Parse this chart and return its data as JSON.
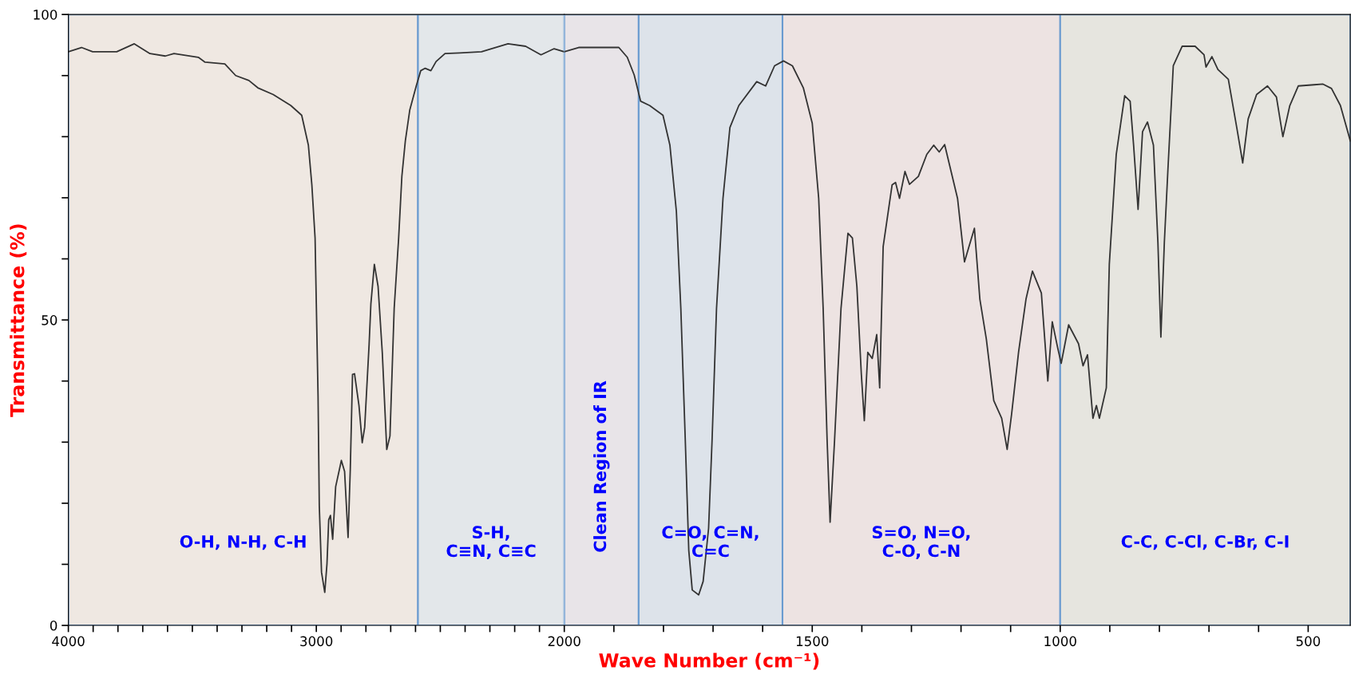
{
  "chart_data": [
    {
      "type": "line",
      "ylabel": "Transmittance (%)",
      "xlim": [
        4000,
        2000
      ],
      "ylim": [
        0,
        100
      ],
      "xticks": [
        4000,
        {
          "value": 3900,
          "label": null
        },
        {
          "value": 3800,
          "label": null
        },
        {
          "value": 3700,
          "label": null
        },
        {
          "value": 3600,
          "label": null
        },
        {
          "value": 3500,
          "label": null
        },
        {
          "value": 3400,
          "label": null
        },
        {
          "value": 3300,
          "label": null
        },
        {
          "value": 3200,
          "label": null
        },
        {
          "value": 3100,
          "label": null
        },
        3000,
        {
          "value": 2900,
          "label": null
        },
        {
          "value": 2800,
          "label": null
        },
        {
          "value": 2700,
          "label": null
        },
        {
          "value": 2600,
          "label": null
        },
        {
          "value": 2500,
          "label": null
        },
        {
          "value": 2400,
          "label": null
        },
        {
          "value": 2300,
          "label": null
        },
        {
          "value": 2200,
          "label": null
        },
        {
          "value": 2100,
          "label": null
        }
      ],
      "yticks": [
        0,
        {
          "value": 10,
          "label": null
        },
        {
          "value": 20,
          "label": null
        },
        {
          "value": 30,
          "label": null
        },
        {
          "value": 40,
          "label": null
        },
        50,
        {
          "value": 60,
          "label": null
        },
        {
          "value": 70,
          "label": null
        },
        {
          "value": 80,
          "label": null
        },
        {
          "value": 90,
          "label": null
        },
        100
      ],
      "grid": false,
      "legend": false,
      "marker": "none",
      "line_style": "solid",
      "series": [
        {
          "color": "#333333",
          "x": [
            4000,
            3947,
            3902,
            3805,
            3734,
            3671,
            3609,
            3574,
            3476,
            3449,
            3369,
            3325,
            3272,
            3236,
            3174,
            3103,
            3059,
            3032,
            3018,
            3005,
            3000,
            2993,
            2988,
            2979,
            2966,
            2957,
            2950,
            2943,
            2934,
            2922,
            2899,
            2886,
            2872,
            2863,
            2854,
            2846,
            2828,
            2815,
            2805,
            2787,
            2780,
            2766,
            2751,
            2734,
            2716,
            2703,
            2686,
            2668,
            2655,
            2641,
            2623,
            2597,
            2579,
            2561,
            2538,
            2517,
            2481,
            2422,
            2334,
            2227,
            2156,
            2094,
            2041,
            2000
          ],
          "values": [
            93.9,
            94.6,
            93.9,
            93.9,
            95.2,
            93.6,
            93.2,
            93.6,
            93.0,
            92.2,
            91.9,
            90.0,
            89.2,
            88.0,
            86.9,
            85.1,
            83.5,
            78.6,
            72.1,
            63.4,
            52.6,
            37.5,
            19.5,
            8.7,
            5.4,
            10.1,
            17.3,
            18.0,
            14.1,
            22.7,
            27.0,
            25.2,
            14.4,
            25.6,
            41.1,
            41.2,
            36.0,
            29.9,
            32.4,
            46.1,
            52.6,
            59.1,
            55.5,
            44.7,
            28.8,
            31.0,
            51.9,
            63.4,
            73.5,
            79.3,
            84.4,
            88.3,
            90.8,
            91.2,
            90.8,
            92.3,
            93.6,
            93.7,
            93.9,
            95.2,
            94.8,
            93.4,
            94.4,
            93.9
          ]
        }
      ],
      "bands": [
        {
          "axis": "x",
          "from": 4000,
          "to": 2590,
          "label": "O-H, N-H, C-H",
          "color": "#efe8e2"
        },
        {
          "axis": "x",
          "from": 2590,
          "to": 2000,
          "label": "S-H,\nC≡N, C≡C",
          "color": "#e3e7ea"
        }
      ]
    },
    {
      "type": "line",
      "xlabel": "Wave Number (cm⁻¹)",
      "xlim": [
        2000,
        415
      ],
      "ylim": [
        0,
        100
      ],
      "tick_labels": "x",
      "xticks": [
        2000,
        {
          "value": 1900,
          "label": null
        },
        {
          "value": 1800,
          "label": null
        },
        {
          "value": 1700,
          "label": null
        },
        {
          "value": 1600,
          "label": null
        },
        1500,
        {
          "value": 1400,
          "label": null
        },
        {
          "value": 1300,
          "label": null
        },
        {
          "value": 1200,
          "label": null
        },
        {
          "value": 1100,
          "label": null
        },
        1000,
        {
          "value": 900,
          "label": null
        },
        {
          "value": 800,
          "label": null
        },
        {
          "value": 700,
          "label": null
        },
        {
          "value": 600,
          "label": null
        },
        500
      ],
      "grid": false,
      "legend": false,
      "marker": "none",
      "line_style": "solid",
      "series": [
        {
          "color": "#333333",
          "x": [
            2000,
            1971,
            1890,
            1873,
            1859,
            1846,
            1828,
            1801,
            1787,
            1774,
            1765,
            1756,
            1749,
            1742,
            1729,
            1720,
            1709,
            1702,
            1693,
            1680,
            1666,
            1648,
            1612,
            1594,
            1576,
            1558,
            1540,
            1518,
            1500,
            1487,
            1478,
            1470,
            1464,
            1455,
            1442,
            1428,
            1419,
            1410,
            1401,
            1395,
            1388,
            1379,
            1370,
            1364,
            1357,
            1339,
            1332,
            1324,
            1313,
            1304,
            1286,
            1269,
            1255,
            1244,
            1233,
            1220,
            1207,
            1193,
            1184,
            1173,
            1162,
            1149,
            1134,
            1118,
            1107,
            1098,
            1084,
            1069,
            1056,
            1038,
            1025,
            1016,
            1005,
            998,
            983,
            963,
            954,
            945,
            934,
            927,
            921,
            907,
            901,
            887,
            870,
            859,
            852,
            843,
            834,
            824,
            812,
            803,
            797,
            790,
            783,
            772,
            754,
            728,
            710,
            706,
            694,
            682,
            661,
            644,
            632,
            621,
            604,
            582,
            564,
            551,
            537,
            520,
            488,
            470,
            453,
            435,
            415
          ],
          "values": [
            93.9,
            94.6,
            94.6,
            93.0,
            90.1,
            85.8,
            85.1,
            83.5,
            78.6,
            67.8,
            51.9,
            30.3,
            12.3,
            5.8,
            5.0,
            7.2,
            15.9,
            30.3,
            51.9,
            69.9,
            81.5,
            85.1,
            89.0,
            88.3,
            91.6,
            92.4,
            91.6,
            88.0,
            82.2,
            69.9,
            51.9,
            30.3,
            16.9,
            30.3,
            51.9,
            64.2,
            63.4,
            55.5,
            41.1,
            33.5,
            44.7,
            43.7,
            47.6,
            38.9,
            62.0,
            72.1,
            72.5,
            69.9,
            74.3,
            72.2,
            73.5,
            77.1,
            78.6,
            77.5,
            78.7,
            74.3,
            69.9,
            59.5,
            62.0,
            65.0,
            53.4,
            46.9,
            36.8,
            33.9,
            28.8,
            34.6,
            44.7,
            53.4,
            58.0,
            54.4,
            40.0,
            49.7,
            45.4,
            42.9,
            49.2,
            46.1,
            42.5,
            44.3,
            33.9,
            36.0,
            33.9,
            38.9,
            59.1,
            77.1,
            86.7,
            85.8,
            78.6,
            68.1,
            80.8,
            82.4,
            78.6,
            62.7,
            47.2,
            62.7,
            74.3,
            91.6,
            94.8,
            94.8,
            93.4,
            91.4,
            93.1,
            91.0,
            89.4,
            81.5,
            75.7,
            82.9,
            86.9,
            88.3,
            86.5,
            80.0,
            85.1,
            88.3,
            88.5,
            88.6,
            87.9,
            85.1,
            79.3
          ]
        }
      ],
      "bands": [
        {
          "axis": "x",
          "from": 2000,
          "to": 1850,
          "label": "Clean Region of IR",
          "color": "#e8e4e8"
        },
        {
          "axis": "x",
          "from": 1850,
          "to": 1560,
          "label": "C=O, C=N,\nC=C",
          "color": "#dde3ea"
        },
        {
          "axis": "x",
          "from": 1560,
          "to": 1000,
          "label": "S=O, N=O,\nC-O, C-N",
          "color": "#ede3e2"
        },
        {
          "axis": "x",
          "from": 1000,
          "to": 415,
          "label": "C-C, C-Cl, C-Br, C-I",
          "color": "#e6e5df"
        }
      ]
    }
  ]
}
